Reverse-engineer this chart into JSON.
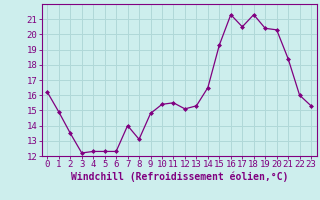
{
  "x": [
    0,
    1,
    2,
    3,
    4,
    5,
    6,
    7,
    8,
    9,
    10,
    11,
    12,
    13,
    14,
    15,
    16,
    17,
    18,
    19,
    20,
    21,
    22,
    23
  ],
  "y": [
    16.2,
    14.9,
    13.5,
    12.2,
    12.3,
    12.3,
    12.3,
    14.0,
    13.1,
    14.8,
    15.4,
    15.5,
    15.1,
    15.3,
    16.5,
    19.3,
    21.3,
    20.5,
    21.3,
    20.4,
    20.3,
    18.4,
    16.0,
    15.3
  ],
  "xlabel": "Windchill (Refroidissement éolien,°C)",
  "ylim": [
    12,
    22
  ],
  "xlim": [
    -0.5,
    23.5
  ],
  "yticks": [
    12,
    13,
    14,
    15,
    16,
    17,
    18,
    19,
    20,
    21
  ],
  "xticks": [
    0,
    1,
    2,
    3,
    4,
    5,
    6,
    7,
    8,
    9,
    10,
    11,
    12,
    13,
    14,
    15,
    16,
    17,
    18,
    19,
    20,
    21,
    22,
    23
  ],
  "line_color": "#800080",
  "marker": "D",
  "marker_size": 2.0,
  "bg_color": "#cdeeed",
  "grid_color": "#b0d8d8",
  "tick_fontsize": 6.5,
  "xlabel_fontsize": 7.0
}
